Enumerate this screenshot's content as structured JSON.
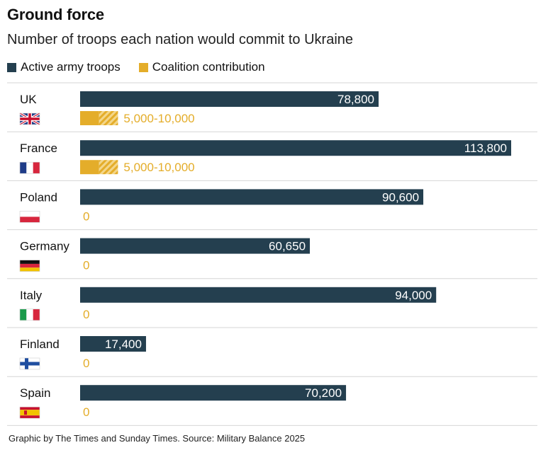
{
  "header": {
    "title": "Ground force",
    "subtitle": "Number of troops each nation would commit to Ukraine"
  },
  "legend": [
    {
      "label": "Active army troops",
      "color": "#243f4f"
    },
    {
      "label": "Coalition contribution",
      "color": "#e4ad2a"
    }
  ],
  "chart_data": {
    "type": "bar",
    "orientation": "horizontal",
    "title": "Ground force",
    "subtitle": "Number of troops each nation would commit to Ukraine",
    "categories": [
      "UK",
      "France",
      "Poland",
      "Germany",
      "Italy",
      "Finland",
      "Spain"
    ],
    "series": [
      {
        "name": "Active army troops",
        "color": "#243f4f",
        "values": [
          78800,
          113800,
          90600,
          60650,
          94000,
          17400,
          70200
        ],
        "labels": [
          "78,800",
          "113,800",
          "90,600",
          "60,650",
          "94,000",
          "17,400",
          "70,200"
        ]
      },
      {
        "name": "Coalition contribution",
        "color": "#e4ad2a",
        "values": [
          [
            5000,
            10000
          ],
          [
            5000,
            10000
          ],
          0,
          0,
          0,
          0,
          0
        ],
        "labels": [
          "5,000-10,000",
          "5,000-10,000",
          "0",
          "0",
          "0",
          "0",
          "0"
        ]
      }
    ],
    "flags": [
      "uk-flag",
      "france-flag",
      "poland-flag",
      "germany-flag",
      "italy-flag",
      "finland-flag",
      "spain-flag"
    ],
    "xlim": [
      0,
      113800
    ],
    "grid": false,
    "legend_position": "top-left"
  },
  "footer": {
    "source": "Graphic by The Times and Sunday Times. Source: Military Balance 2025"
  }
}
